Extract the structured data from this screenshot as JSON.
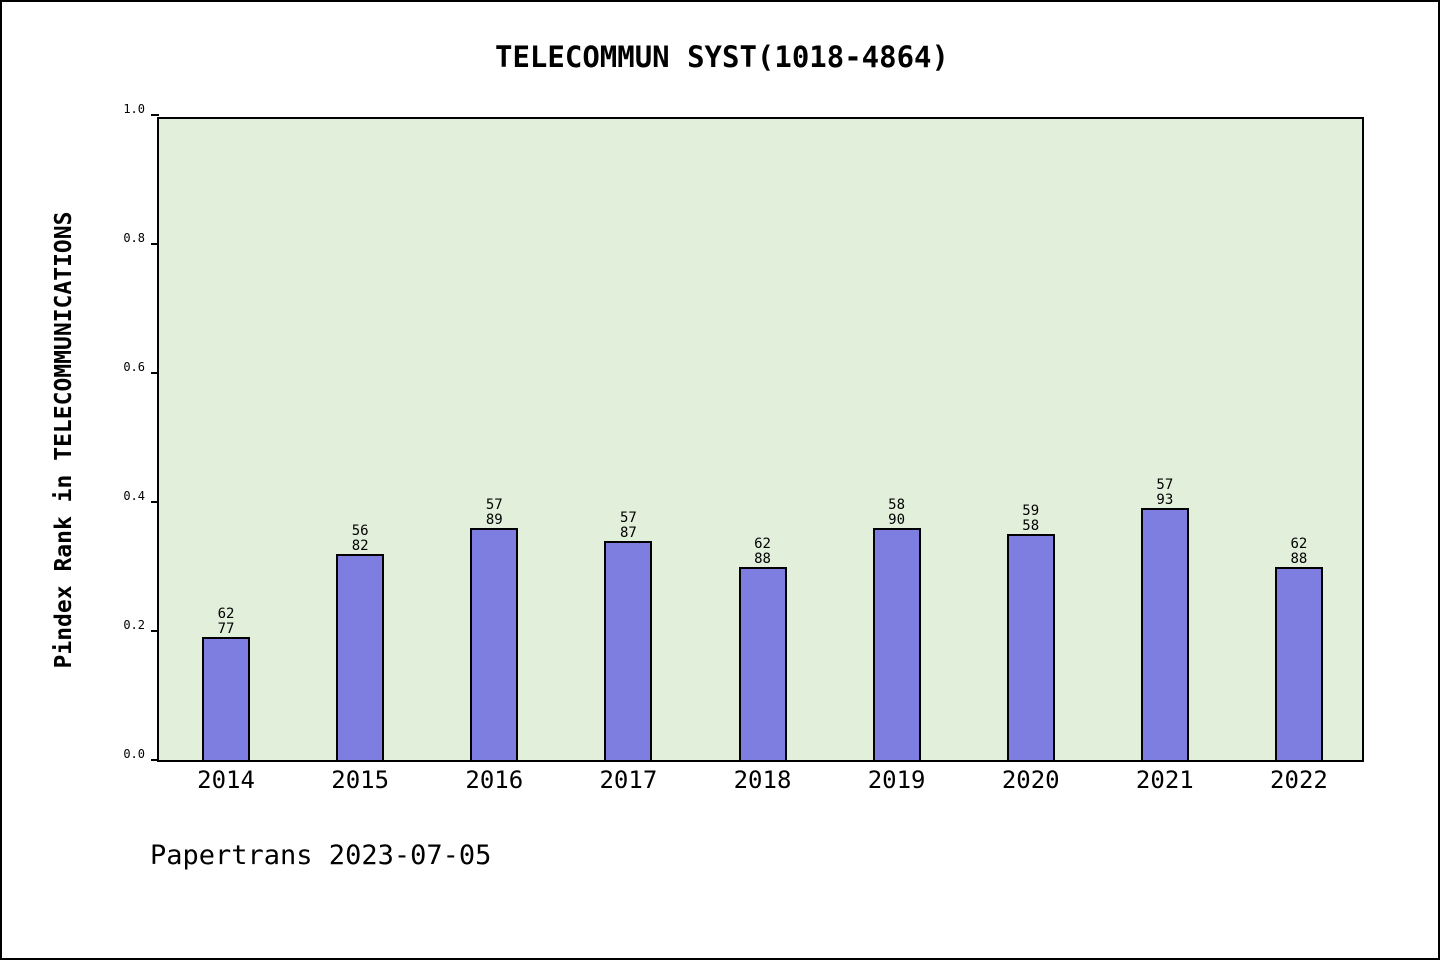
{
  "title": "TELECOMMUN SYST(1018-4864)",
  "footer": "Papertrans 2023-07-05",
  "chart_data": {
    "type": "bar",
    "title": "TELECOMMUN SYST(1018-4864)",
    "categories": [
      "2014",
      "2015",
      "2016",
      "2017",
      "2018",
      "2019",
      "2020",
      "2021",
      "2022"
    ],
    "values": [
      0.19,
      0.32,
      0.36,
      0.34,
      0.3,
      0.36,
      0.35,
      0.39,
      0.3
    ],
    "bar_labels": [
      [
        "62",
        "77"
      ],
      [
        "56",
        "82"
      ],
      [
        "57",
        "89"
      ],
      [
        "57",
        "87"
      ],
      [
        "62",
        "88"
      ],
      [
        "58",
        "90"
      ],
      [
        "59",
        "58"
      ],
      [
        "57",
        "93"
      ],
      [
        "62",
        "88"
      ]
    ],
    "xlabel": "",
    "ylabel": "Pindex Rank in TELECOMMUNICATIONS",
    "ylim": [
      0.0,
      1.0
    ],
    "yticks": [
      "0.0",
      "0.2",
      "0.4",
      "0.6",
      "0.8",
      "1.0"
    ],
    "grid": false,
    "legend_position": "none",
    "colors": {
      "bar_fill": "#7e7ee0",
      "bar_border": "#000000",
      "plot_background": "#e2efda",
      "frame_border": "#000000"
    },
    "annotations": [
      "Papertrans 2023-07-05"
    ]
  }
}
